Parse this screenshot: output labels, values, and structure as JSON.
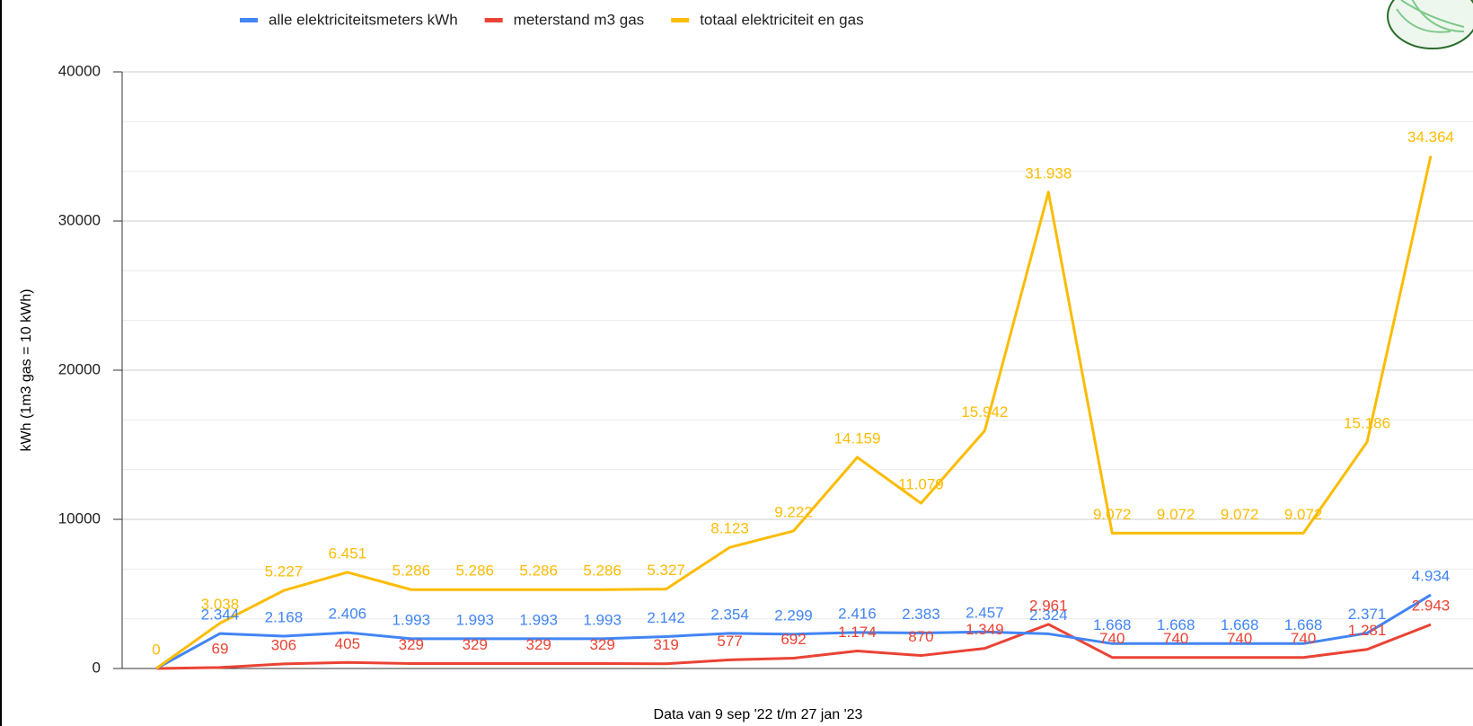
{
  "chart_data": {
    "type": "line",
    "x_label": "Data van 9 sep '22 t/m 27 jan '23",
    "y_label": "kWh (1m3 gas = 10 kWh)",
    "categories": [
      null,
      null,
      null,
      null,
      null,
      null,
      null,
      null,
      null,
      null,
      null,
      null,
      null,
      null,
      null,
      null,
      null,
      null,
      null,
      null,
      null
    ],
    "ylim": [
      0,
      40000
    ],
    "yticks": [
      0,
      10000,
      20000,
      30000,
      40000
    ],
    "grid": true,
    "legend": "top",
    "series": [
      {
        "name": "alle elektriciteitsmeters kWh",
        "color": "#4285f4",
        "values": [
          0,
          2344,
          2168,
          2406,
          1993,
          1993,
          1993,
          1993,
          2142,
          2354,
          2299,
          2416,
          2383,
          2457,
          2324,
          1668,
          1668,
          1668,
          1668,
          2371,
          4934
        ],
        "value_labels": [
          null,
          "2.344",
          "2.168",
          "2.406",
          "1.993",
          "1.993",
          "1.993",
          "1.993",
          "2.142",
          "2.354",
          "2.299",
          "2.416",
          "2.383",
          "2.457",
          "2.324",
          "1.668",
          "1.668",
          "1.668",
          "1.668",
          "2.371",
          "4.934"
        ]
      },
      {
        "name": "meterstand m3 gas",
        "color": "#ea4335",
        "values": [
          0,
          69,
          306,
          405,
          329,
          329,
          329,
          329,
          319,
          577,
          692,
          1174,
          870,
          1349,
          2961,
          740,
          740,
          740,
          740,
          1281,
          2943
        ],
        "value_labels": [
          null,
          "69",
          "306",
          "405",
          "329",
          "329",
          "329",
          "329",
          "319",
          "577",
          "692",
          "1.174",
          "870",
          "1.349",
          "2.961",
          "740",
          "740",
          "740",
          "740",
          "1.281",
          "2.943"
        ]
      },
      {
        "name": "totaal elektriciteit en gas",
        "color": "#fbbc04",
        "values": [
          0,
          3038,
          5227,
          6451,
          5286,
          5286,
          5286,
          5286,
          5327,
          8123,
          9222,
          14159,
          11079,
          15942,
          31938,
          9072,
          9072,
          9072,
          9072,
          15186,
          34364
        ],
        "value_labels": [
          "0",
          "3.038",
          "5.227",
          "6.451",
          "5.286",
          "5.286",
          "5.286",
          "5.286",
          "5.327",
          "8.123",
          "9.222",
          "14.159",
          "11.079",
          "15.942",
          "31.938",
          "9.072",
          "9.072",
          "9.072",
          "9.072",
          "15.186",
          "34.364"
        ]
      }
    ]
  }
}
